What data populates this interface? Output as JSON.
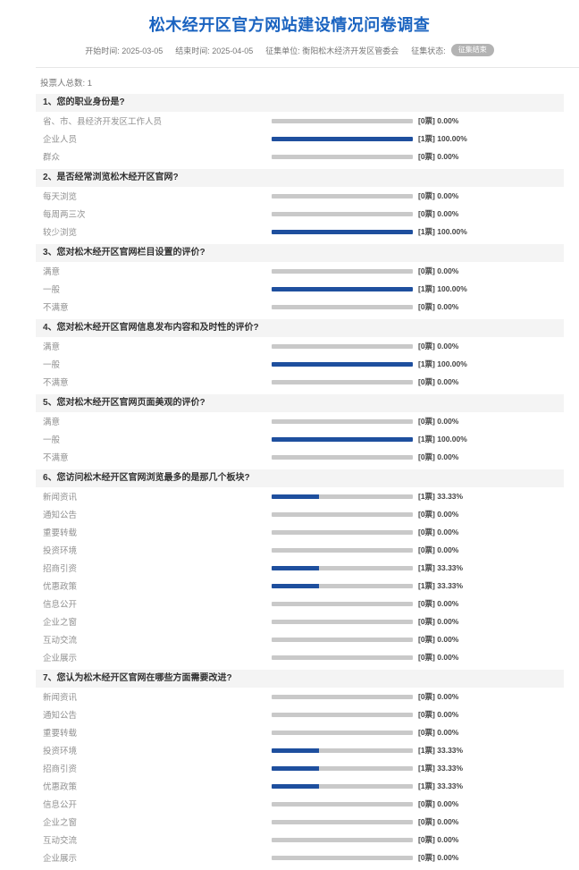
{
  "page": {
    "title": "松木经开区官方网站建设情况问卷调查",
    "meta": {
      "start": "开始时间: 2025-03-05",
      "end": "结束时间: 2025-04-05",
      "org": "征集单位: 衡阳松木经济开发区管委会",
      "status_label": "征集状态:",
      "status_badge": "征集结束"
    },
    "voters_total": "投票人总数: 1"
  },
  "colors": {
    "title_blue": "#1a63c0",
    "bar_fill": "#1e4f9e",
    "bar_track": "#c9c9c9",
    "header_bg": "#f4f4f4",
    "badge_bg": "#b3b3b3",
    "label_gray": "#909090",
    "votes_dark": "#444444"
  },
  "questions": [
    {
      "title": "1、您的职业身份是?",
      "options": [
        {
          "label": "省、市、县经济开发区工作人员",
          "votes": "[0票] 0.00%",
          "pct": 0
        },
        {
          "label": "企业人员",
          "votes": "[1票] 100.00%",
          "pct": 100
        },
        {
          "label": "群众",
          "votes": "[0票] 0.00%",
          "pct": 0
        }
      ]
    },
    {
      "title": "2、是否经常浏览松木经开区官网?",
      "options": [
        {
          "label": "每天浏览",
          "votes": "[0票] 0.00%",
          "pct": 0
        },
        {
          "label": "每周两三次",
          "votes": "[0票] 0.00%",
          "pct": 0
        },
        {
          "label": "较少浏览",
          "votes": "[1票] 100.00%",
          "pct": 100
        }
      ]
    },
    {
      "title": "3、您对松木经开区官网栏目设置的评价?",
      "options": [
        {
          "label": "满意",
          "votes": "[0票] 0.00%",
          "pct": 0
        },
        {
          "label": "一般",
          "votes": "[1票] 100.00%",
          "pct": 100
        },
        {
          "label": "不满意",
          "votes": "[0票] 0.00%",
          "pct": 0
        }
      ]
    },
    {
      "title": "4、您对松木经开区官网信息发布内容和及时性的评价?",
      "options": [
        {
          "label": "满意",
          "votes": "[0票] 0.00%",
          "pct": 0
        },
        {
          "label": "一般",
          "votes": "[1票] 100.00%",
          "pct": 100
        },
        {
          "label": "不满意",
          "votes": "[0票] 0.00%",
          "pct": 0
        }
      ]
    },
    {
      "title": "5、您对松木经开区官网页面美观的评价?",
      "options": [
        {
          "label": "满意",
          "votes": "[0票] 0.00%",
          "pct": 0
        },
        {
          "label": "一般",
          "votes": "[1票] 100.00%",
          "pct": 100
        },
        {
          "label": "不满意",
          "votes": "[0票] 0.00%",
          "pct": 0
        }
      ]
    },
    {
      "title": "6、您访问松木经开区官网浏览最多的是那几个板块?",
      "options": [
        {
          "label": "新闻资讯",
          "votes": "[1票] 33.33%",
          "pct": 33.33
        },
        {
          "label": "通知公告",
          "votes": "[0票] 0.00%",
          "pct": 0
        },
        {
          "label": "重要转载",
          "votes": "[0票] 0.00%",
          "pct": 0
        },
        {
          "label": "投资环境",
          "votes": "[0票] 0.00%",
          "pct": 0
        },
        {
          "label": "招商引资",
          "votes": "[1票] 33.33%",
          "pct": 33.33
        },
        {
          "label": "优惠政策",
          "votes": "[1票] 33.33%",
          "pct": 33.33
        },
        {
          "label": "信息公开",
          "votes": "[0票] 0.00%",
          "pct": 0
        },
        {
          "label": "企业之窗",
          "votes": "[0票] 0.00%",
          "pct": 0
        },
        {
          "label": "互动交流",
          "votes": "[0票] 0.00%",
          "pct": 0
        },
        {
          "label": "企业展示",
          "votes": "[0票] 0.00%",
          "pct": 0
        }
      ]
    },
    {
      "title": "7、您认为松木经开区官网在哪些方面需要改进?",
      "options": [
        {
          "label": "新闻资讯",
          "votes": "[0票] 0.00%",
          "pct": 0
        },
        {
          "label": "通知公告",
          "votes": "[0票] 0.00%",
          "pct": 0
        },
        {
          "label": "重要转载",
          "votes": "[0票] 0.00%",
          "pct": 0
        },
        {
          "label": "投资环境",
          "votes": "[1票] 33.33%",
          "pct": 33.33
        },
        {
          "label": "招商引资",
          "votes": "[1票] 33.33%",
          "pct": 33.33
        },
        {
          "label": "优惠政策",
          "votes": "[1票] 33.33%",
          "pct": 33.33
        },
        {
          "label": "信息公开",
          "votes": "[0票] 0.00%",
          "pct": 0
        },
        {
          "label": "企业之窗",
          "votes": "[0票] 0.00%",
          "pct": 0
        },
        {
          "label": "互动交流",
          "votes": "[0票] 0.00%",
          "pct": 0
        },
        {
          "label": "企业展示",
          "votes": "[0票] 0.00%",
          "pct": 0
        }
      ]
    }
  ]
}
